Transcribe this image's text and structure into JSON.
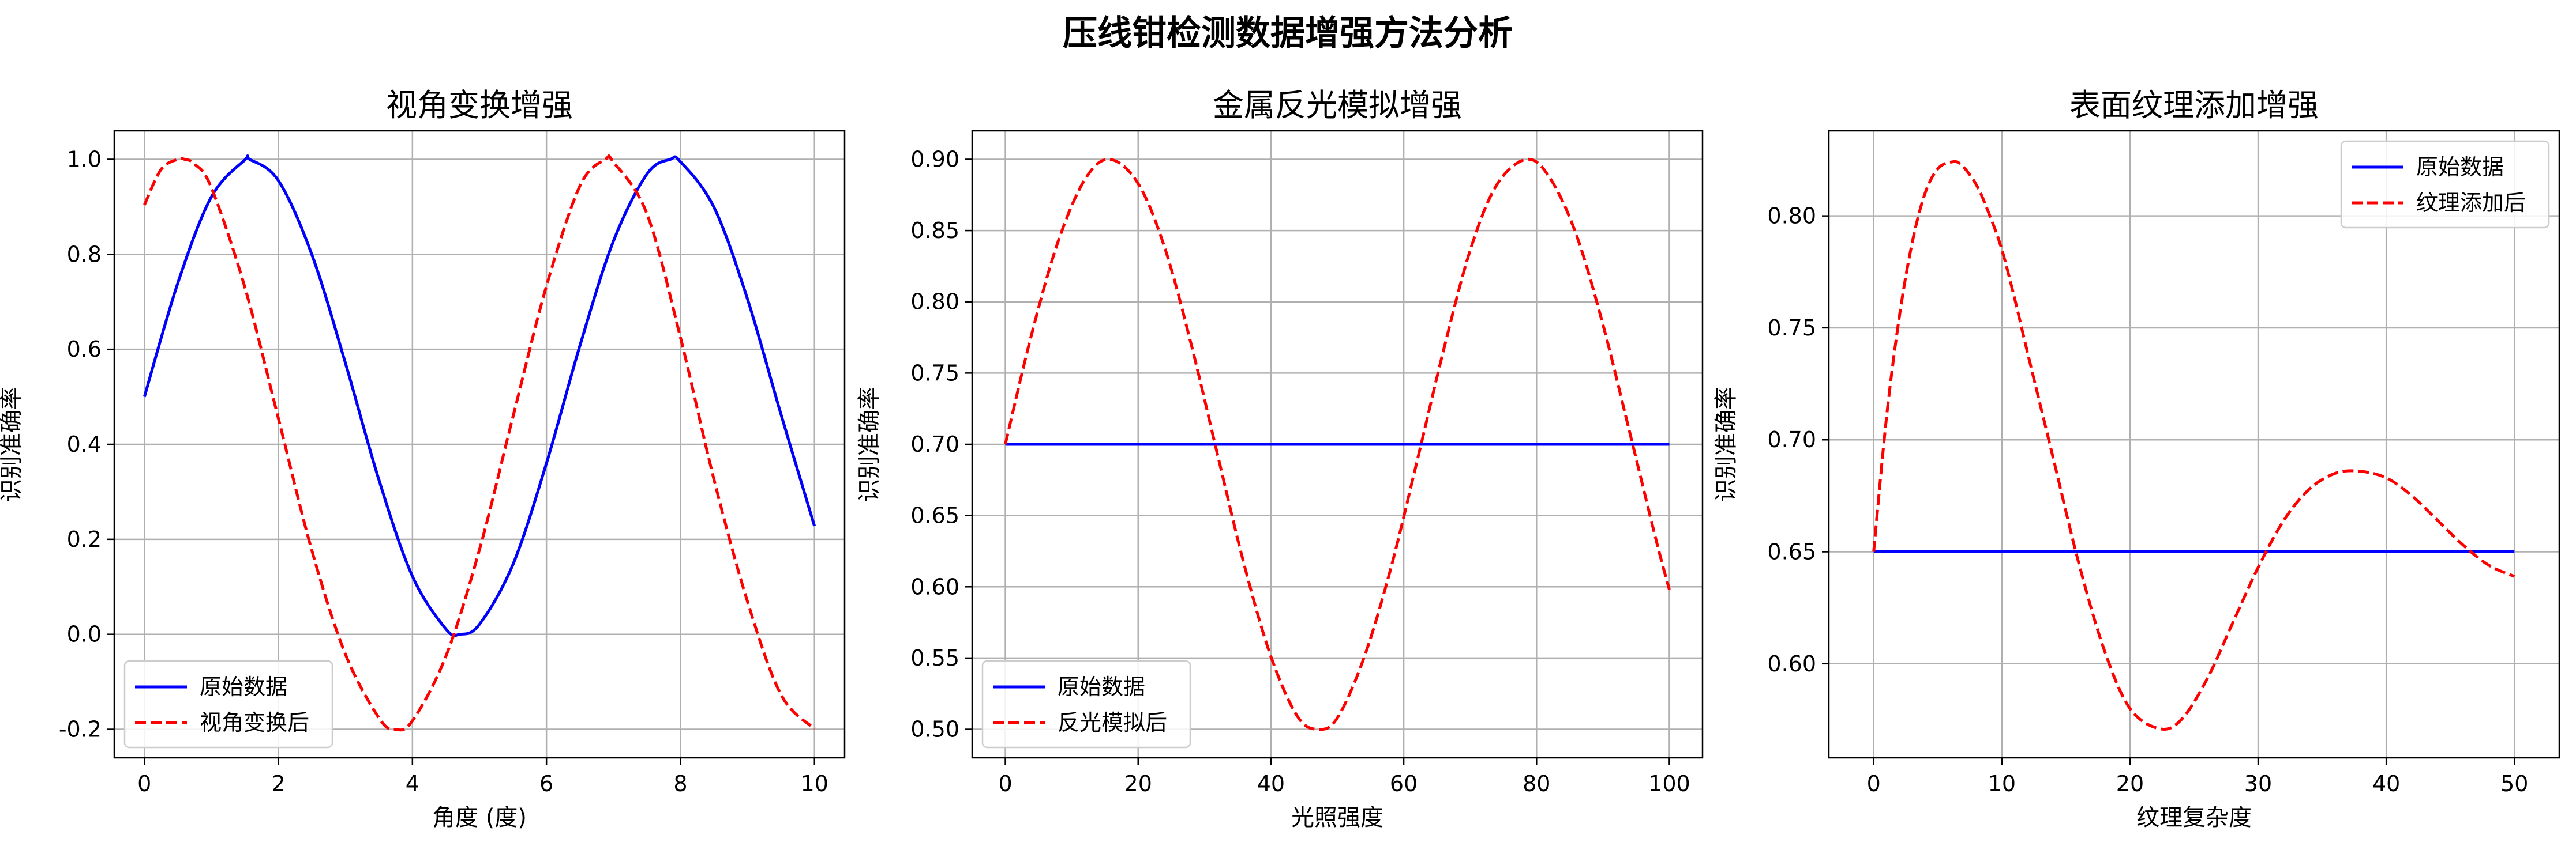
{
  "figure": {
    "title": "压线钳检测数据增强方法分析"
  },
  "chart_data": [
    {
      "type": "line",
      "title": "视角变换增强",
      "xlabel": "角度 (度)",
      "ylabel": "识别准确率",
      "xlim": [
        -0.45,
        10.45
      ],
      "ylim": [
        -0.26,
        1.06
      ],
      "xticks": [
        0,
        2,
        4,
        6,
        8,
        10
      ],
      "xtick_labels": [
        "0",
        "2",
        "4",
        "6",
        "8",
        "10"
      ],
      "yticks": [
        -0.2,
        0.0,
        0.2,
        0.4,
        0.6,
        0.8,
        1.0
      ],
      "ytick_labels": [
        "-0.2",
        "0.0",
        "0.2",
        "0.4",
        "0.6",
        "0.8",
        "1.0"
      ],
      "grid": true,
      "legend": "lower-left",
      "series": [
        {
          "name": "原始数据",
          "color": "#0000ff",
          "dash": "solid",
          "x": [
            0,
            0.5,
            1,
            1.5,
            1.57,
            2,
            2.5,
            3,
            3.5,
            4,
            4.5,
            4.71,
            5,
            5.5,
            6,
            6.5,
            7,
            7.5,
            7.85,
            8,
            8.5,
            9,
            9.5,
            10
          ],
          "y": [
            0.5,
            0.74,
            0.921,
            0.999,
            1.0,
            0.955,
            0.799,
            0.571,
            0.325,
            0.122,
            0.011,
            0.0,
            0.021,
            0.147,
            0.36,
            0.608,
            0.828,
            0.969,
            1.0,
            0.995,
            0.899,
            0.706,
            0.463,
            0.228
          ]
        },
        {
          "name": "视角变换后",
          "color": "#ff0000",
          "dash": "dashed",
          "x": [
            0,
            0.25,
            0.5,
            0.6,
            0.75,
            1,
            1.5,
            2,
            2.5,
            3,
            3.5,
            3.74,
            4,
            4.5,
            5,
            5.5,
            6,
            6.5,
            6.88,
            7,
            7.5,
            8,
            8.5,
            9,
            9.5,
            10
          ],
          "y": [
            0.904,
            0.979,
            1.0,
            1.0,
            0.99,
            0.94,
            0.73,
            0.454,
            0.176,
            -0.042,
            -0.176,
            -0.2,
            -0.182,
            -0.046,
            0.178,
            0.458,
            0.733,
            0.944,
            1.0,
            0.994,
            0.885,
            0.625,
            0.326,
            0.069,
            -0.127,
            -0.199
          ]
        }
      ]
    },
    {
      "type": "line",
      "title": "金属反光模拟增强",
      "xlabel": "光照强度",
      "ylabel": "识别准确率",
      "xlim": [
        -5,
        105
      ],
      "ylim": [
        0.48,
        0.92
      ],
      "xticks": [
        0,
        20,
        40,
        60,
        80,
        100
      ],
      "xtick_labels": [
        "0",
        "20",
        "40",
        "60",
        "80",
        "100"
      ],
      "yticks": [
        0.5,
        0.55,
        0.6,
        0.65,
        0.7,
        0.75,
        0.8,
        0.85,
        0.9
      ],
      "ytick_labels": [
        "0.50",
        "0.55",
        "0.60",
        "0.65",
        "0.70",
        "0.75",
        "0.80",
        "0.85",
        "0.90"
      ],
      "grid": true,
      "legend": "lower-left",
      "series": [
        {
          "name": "原始数据",
          "color": "#0000ff",
          "dash": "solid",
          "x": [
            0,
            100
          ],
          "y": [
            0.7,
            0.7
          ]
        },
        {
          "name": "反光模拟后",
          "color": "#ff0000",
          "dash": "dashed",
          "x": [
            0,
            4,
            8,
            12,
            15.7,
            20,
            24,
            28,
            32,
            36,
            40,
            44,
            47.1,
            50,
            54,
            58,
            62,
            66,
            70,
            74,
            78.5,
            82,
            86,
            90,
            94,
            98,
            100
          ],
          "y": [
            0.7,
            0.778,
            0.843,
            0.886,
            0.9,
            0.883,
            0.838,
            0.77,
            0.692,
            0.615,
            0.551,
            0.509,
            0.5,
            0.508,
            0.55,
            0.612,
            0.688,
            0.766,
            0.836,
            0.882,
            0.9,
            0.887,
            0.847,
            0.784,
            0.709,
            0.633,
            0.598
          ]
        }
      ]
    },
    {
      "type": "line",
      "title": "表面纹理添加增强",
      "xlabel": "纹理复杂度",
      "ylabel": "识别准确率",
      "xlim": [
        -3.5,
        53.5
      ],
      "ylim": [
        0.558,
        0.838
      ],
      "xticks": [
        0,
        10,
        20,
        30,
        40,
        50
      ],
      "xtick_labels": [
        "0",
        "10",
        "20",
        "30",
        "40",
        "50"
      ],
      "yticks": [
        0.6,
        0.65,
        0.7,
        0.75,
        0.8
      ],
      "ytick_labels": [
        "0.60",
        "0.65",
        "0.70",
        "0.75",
        "0.80"
      ],
      "grid": true,
      "legend": "upper-right",
      "series": [
        {
          "name": "原始数据",
          "color": "#0000ff",
          "dash": "solid",
          "x": [
            0,
            50
          ],
          "y": [
            0.65,
            0.65
          ]
        },
        {
          "name": "纹理添加后",
          "color": "#ff0000",
          "dash": "dashed",
          "x": [
            0,
            1,
            2,
            3,
            4,
            5,
            6,
            6.8,
            8,
            9,
            10,
            11,
            12,
            14,
            16,
            18,
            20,
            22.3,
            24,
            26,
            28,
            30,
            32,
            34,
            36,
            37.9,
            40,
            42,
            44,
            46,
            48,
            50
          ],
          "y": [
            0.65,
            0.71,
            0.755,
            0.788,
            0.81,
            0.821,
            0.824,
            0.823,
            0.814,
            0.801,
            0.785,
            0.763,
            0.739,
            0.692,
            0.645,
            0.606,
            0.58,
            0.571,
            0.575,
            0.593,
            0.618,
            0.643,
            0.664,
            0.678,
            0.685,
            0.686,
            0.683,
            0.675,
            0.664,
            0.653,
            0.644,
            0.639
          ]
        }
      ]
    }
  ]
}
